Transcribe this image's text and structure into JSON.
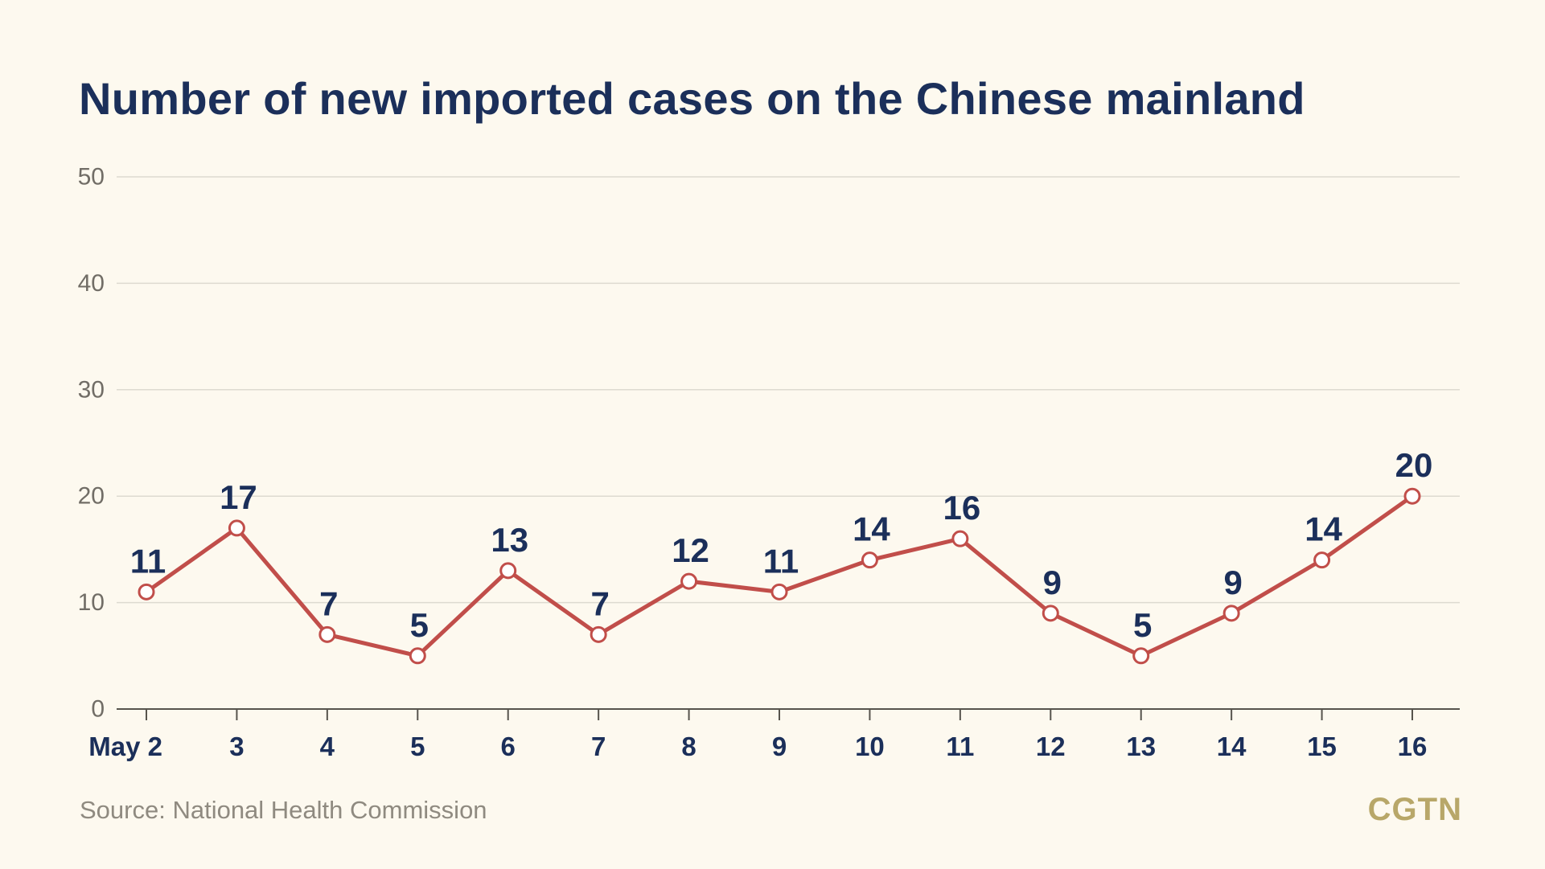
{
  "source": "Source: National Health Commission",
  "brand": {
    "text": "CGTN",
    "color": "#b8a769"
  },
  "colors": {
    "background": "#fdf9ef",
    "title": "#1b2f5a",
    "line": "#c14e4a",
    "label": "#1b2f5a",
    "grid": "#dddad0",
    "axis": "#57544d",
    "tick_text_y": "#716d66"
  },
  "chart_data": {
    "type": "line",
    "title": "Number of new imported cases on the Chinese mainland",
    "xlabel": "",
    "ylabel": "",
    "ylim": [
      0,
      50
    ],
    "yticks": [
      0,
      10,
      20,
      30,
      40,
      50
    ],
    "grid": true,
    "categories": [
      "May 2",
      "3",
      "4",
      "5",
      "6",
      "7",
      "8",
      "9",
      "10",
      "11",
      "12",
      "13",
      "14",
      "15",
      "16"
    ],
    "series": [
      {
        "values": [
          11,
          17,
          7,
          5,
          13,
          7,
          12,
          11,
          14,
          16,
          9,
          5,
          9,
          14,
          20
        ],
        "data_labels": [
          "11",
          "17",
          "7",
          "5",
          "13",
          "7",
          "12",
          "11",
          "14",
          "16",
          "9",
          "5",
          "9",
          "14",
          "20"
        ]
      }
    ]
  }
}
